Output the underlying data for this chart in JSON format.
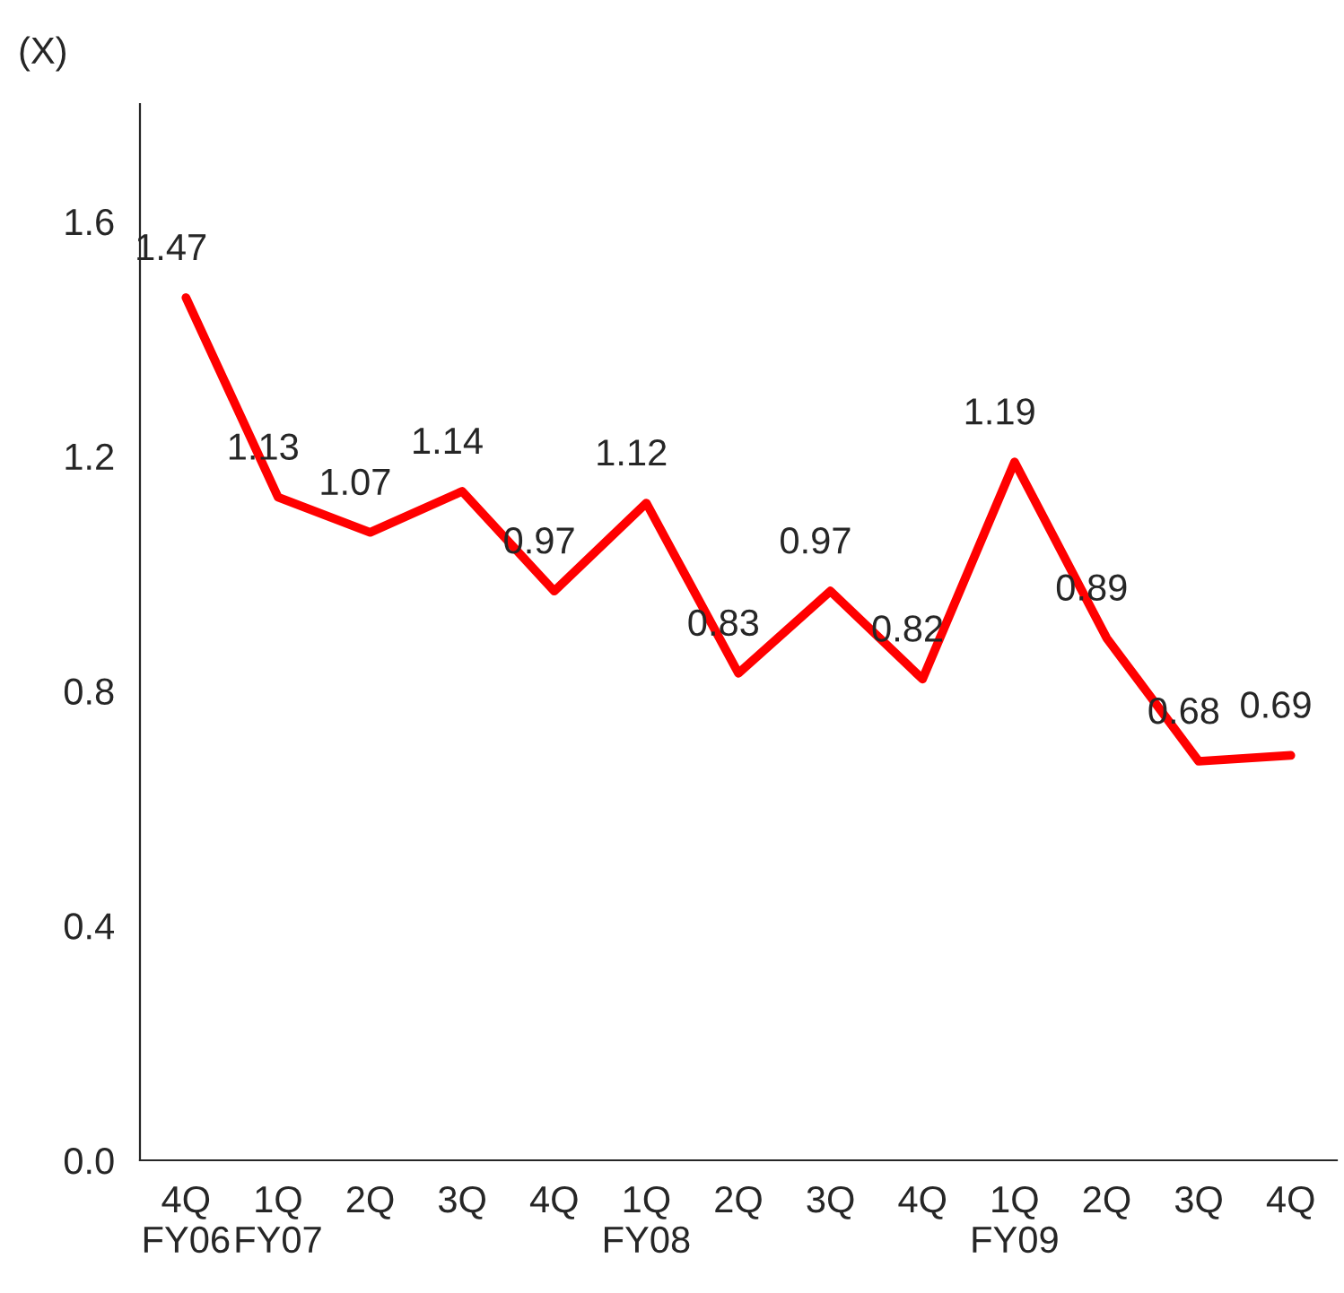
{
  "chart_data": {
    "type": "line",
    "ylabel": "(X)",
    "categories": [
      "4Q\nFY06",
      "1Q\nFY07",
      "2Q",
      "3Q",
      "4Q",
      "1Q\nFY08",
      "2Q",
      "3Q",
      "4Q",
      "1Q\nFY09",
      "2Q",
      "3Q",
      "4Q"
    ],
    "series": [
      {
        "color": "#ff0000",
        "values": [
          1.47,
          1.13,
          1.07,
          1.14,
          0.97,
          1.12,
          0.83,
          0.97,
          0.82,
          1.19,
          0.89,
          0.68,
          0.69
        ]
      }
    ],
    "ylim": [
      0,
      1.8
    ],
    "yticks": [
      {
        "value": 0,
        "label": "0.0"
      },
      {
        "value": 0.4,
        "label": "0.4"
      },
      {
        "value": 0.8,
        "label": "0.8"
      },
      {
        "value": 1.2,
        "label": "1.2"
      },
      {
        "value": 1.6,
        "label": "1.6"
      }
    ],
    "data_labels": true,
    "grid": false,
    "legend": false,
    "marker": "none",
    "line_style": "solid"
  }
}
